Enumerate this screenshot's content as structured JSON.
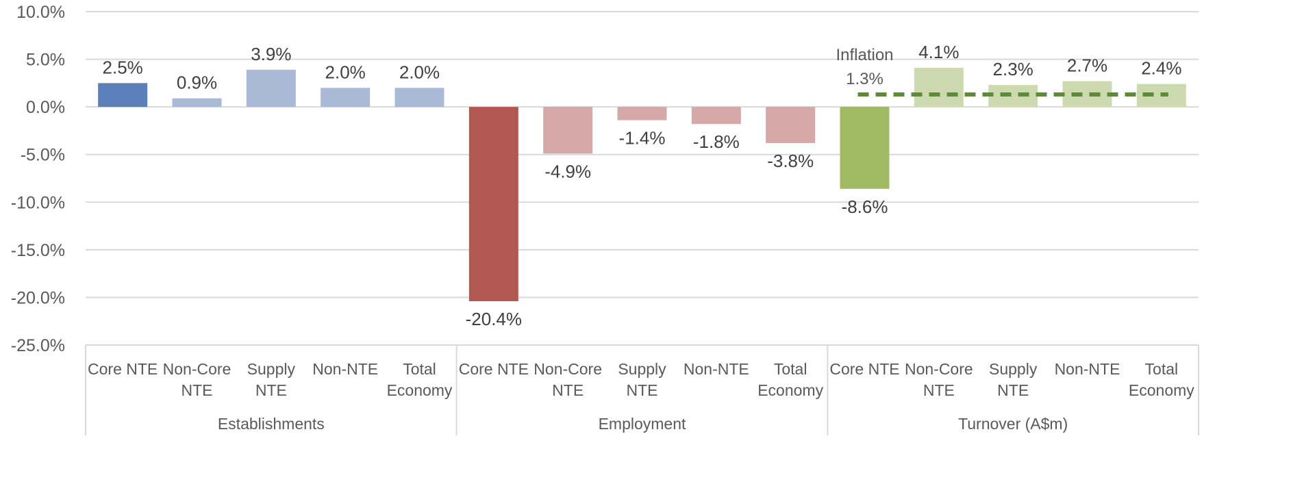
{
  "chart_data": {
    "type": "bar",
    "ylim": [
      -25,
      10
    ],
    "yticks": [
      "10.0%",
      "5.0%",
      "0.0%",
      "-5.0%",
      "-10.0%",
      "-15.0%",
      "-20.0%",
      "-25.0%"
    ],
    "ytick_values": [
      10,
      5,
      0,
      -5,
      -10,
      -15,
      -20,
      -25
    ],
    "grid": true,
    "groups": [
      {
        "name": "Establishments",
        "colors": {
          "highlight": "#5B7FB9",
          "normal": "#A9B9D6"
        },
        "categories": [
          "Core NTE",
          "Non-Core NTE",
          "Supply NTE",
          "Non-NTE",
          "Total Economy"
        ],
        "values": [
          2.5,
          0.9,
          3.9,
          2.0,
          2.0
        ],
        "labels": [
          "2.5%",
          "0.9%",
          "3.9%",
          "2.0%",
          "2.0%"
        ]
      },
      {
        "name": "Employment",
        "colors": {
          "highlight": "#B05851",
          "normal": "#D5A9A8"
        },
        "categories": [
          "Core NTE",
          "Non-Core NTE",
          "Supply NTE",
          "Non-NTE",
          "Total Economy"
        ],
        "values": [
          -20.4,
          -4.9,
          -1.4,
          -1.8,
          -3.8
        ],
        "labels": [
          "-20.4%",
          "-4.9%",
          "-1.4%",
          "-1.8%",
          "-3.8%"
        ]
      },
      {
        "name": "Turnover (A$m)",
        "colors": {
          "highlight": "#9FBA62",
          "normal": "#CDDAAF"
        },
        "categories": [
          "Core NTE",
          "Non-Core NTE",
          "Supply NTE",
          "Non-NTE",
          "Total Economy"
        ],
        "values": [
          -8.6,
          4.1,
          2.3,
          2.7,
          2.4
        ],
        "labels": [
          "-8.6%",
          "4.1%",
          "2.3%",
          "2.7%",
          "2.4%"
        ]
      }
    ],
    "inflation": {
      "label": "Inflation",
      "value": 1.3,
      "value_label": "1.3%",
      "color": "#5E8A3A",
      "group": "Turnover (A$m)"
    }
  }
}
